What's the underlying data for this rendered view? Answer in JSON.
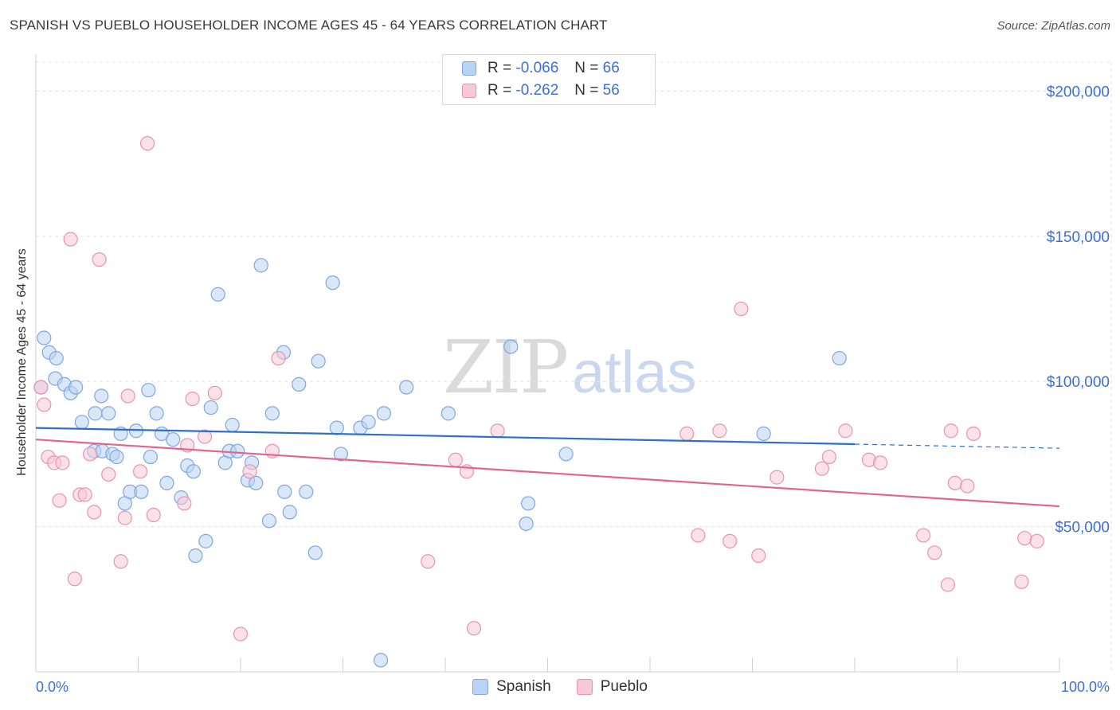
{
  "header": {
    "title": "SPANISH VS PUEBLO HOUSEHOLDER INCOME AGES 45 - 64 YEARS CORRELATION CHART",
    "source": "Source: ZipAtlas.com"
  },
  "watermark": {
    "zip": "ZIP",
    "atlas": "atlas"
  },
  "legend": {
    "rows": [
      {
        "r_label": "R =",
        "r_value": "-0.066",
        "n_label": "N =",
        "n_value": "66"
      },
      {
        "r_label": "R =",
        "r_value": "-0.262",
        "n_label": "N =",
        "n_value": "56"
      }
    ]
  },
  "colors": {
    "spanish_fill": "#b9d3f4",
    "spanish_stroke": "#7ea7de",
    "spanish_line": "#2d6fca",
    "pueblo_fill": "#f8c8d6",
    "pueblo_stroke": "#e893b0",
    "pueblo_line": "#e0668f",
    "value_text": "#3d6fd6",
    "grid": "#e2e2e2"
  },
  "chart_data": {
    "type": "scatter",
    "xlabel": "",
    "ylabel": "Householder Income Ages 45 - 64 years",
    "xlim": [
      0,
      100
    ],
    "ylim": [
      0,
      210000
    ],
    "x_tick_labels": [
      "0.0%",
      "100.0%"
    ],
    "y_ticks": [
      50000,
      100000,
      150000,
      200000
    ],
    "y_tick_labels": [
      "$50,000",
      "$100,000",
      "$150,000",
      "$200,000"
    ],
    "grid": true,
    "legend_position": "bottom-center",
    "series": [
      {
        "name": "Spanish",
        "r": -0.066,
        "n": 66,
        "trend": {
          "x0": 0,
          "y0": 84000,
          "x1": 100,
          "y1": 77000,
          "solid_until": 80
        },
        "points": [
          [
            0.5,
            98000
          ],
          [
            0.8,
            115000
          ],
          [
            1.3,
            110000
          ],
          [
            2.0,
            108000
          ],
          [
            1.9,
            101000
          ],
          [
            2.8,
            99000
          ],
          [
            3.4,
            96000
          ],
          [
            3.9,
            98000
          ],
          [
            4.5,
            86000
          ],
          [
            5.7,
            76000
          ],
          [
            5.8,
            89000
          ],
          [
            6.4,
            95000
          ],
          [
            6.5,
            76000
          ],
          [
            7.1,
            89000
          ],
          [
            7.5,
            75000
          ],
          [
            7.9,
            74000
          ],
          [
            8.3,
            82000
          ],
          [
            8.7,
            58000
          ],
          [
            9.2,
            62000
          ],
          [
            9.8,
            83000
          ],
          [
            10.3,
            62000
          ],
          [
            11.0,
            97000
          ],
          [
            11.2,
            74000
          ],
          [
            11.8,
            89000
          ],
          [
            12.3,
            82000
          ],
          [
            12.8,
            65000
          ],
          [
            13.4,
            80000
          ],
          [
            14.2,
            60000
          ],
          [
            14.8,
            71000
          ],
          [
            15.4,
            69000
          ],
          [
            15.6,
            40000
          ],
          [
            16.6,
            45000
          ],
          [
            17.1,
            91000
          ],
          [
            17.8,
            130000
          ],
          [
            18.5,
            72000
          ],
          [
            18.9,
            76000
          ],
          [
            19.2,
            85000
          ],
          [
            19.7,
            76000
          ],
          [
            20.7,
            66000
          ],
          [
            21.1,
            72000
          ],
          [
            21.5,
            65000
          ],
          [
            22.0,
            140000
          ],
          [
            22.8,
            52000
          ],
          [
            23.1,
            89000
          ],
          [
            24.2,
            110000
          ],
          [
            24.3,
            62000
          ],
          [
            24.8,
            55000
          ],
          [
            25.7,
            99000
          ],
          [
            26.4,
            62000
          ],
          [
            27.3,
            41000
          ],
          [
            27.6,
            107000
          ],
          [
            29.0,
            134000
          ],
          [
            29.4,
            84000
          ],
          [
            29.8,
            75000
          ],
          [
            31.7,
            84000
          ],
          [
            32.5,
            86000
          ],
          [
            33.7,
            4000
          ],
          [
            34.0,
            89000
          ],
          [
            36.2,
            98000
          ],
          [
            40.3,
            89000
          ],
          [
            46.4,
            112000
          ],
          [
            47.9,
            51000
          ],
          [
            48.1,
            58000
          ],
          [
            51.8,
            75000
          ],
          [
            71.1,
            82000
          ],
          [
            78.5,
            108000
          ]
        ]
      },
      {
        "name": "Pueblo",
        "r": -0.262,
        "n": 56,
        "trend": {
          "x0": 0,
          "y0": 80000,
          "x1": 100,
          "y1": 57000
        },
        "points": [
          [
            0.5,
            98000
          ],
          [
            0.8,
            92000
          ],
          [
            1.2,
            74000
          ],
          [
            1.8,
            72000
          ],
          [
            2.3,
            59000
          ],
          [
            2.6,
            72000
          ],
          [
            3.4,
            149000
          ],
          [
            3.8,
            32000
          ],
          [
            4.3,
            61000
          ],
          [
            4.8,
            61000
          ],
          [
            5.3,
            75000
          ],
          [
            5.7,
            55000
          ],
          [
            6.2,
            142000
          ],
          [
            7.1,
            68000
          ],
          [
            8.3,
            38000
          ],
          [
            8.7,
            53000
          ],
          [
            9.0,
            95000
          ],
          [
            10.2,
            69000
          ],
          [
            10.9,
            182000
          ],
          [
            11.5,
            54000
          ],
          [
            14.5,
            58000
          ],
          [
            14.8,
            78000
          ],
          [
            15.3,
            94000
          ],
          [
            16.5,
            81000
          ],
          [
            17.5,
            96000
          ],
          [
            20.0,
            13000
          ],
          [
            20.9,
            69000
          ],
          [
            23.1,
            76000
          ],
          [
            23.7,
            108000
          ],
          [
            38.3,
            38000
          ],
          [
            41.0,
            73000
          ],
          [
            42.1,
            69000
          ],
          [
            42.8,
            15000
          ],
          [
            45.1,
            83000
          ],
          [
            63.6,
            82000
          ],
          [
            64.7,
            47000
          ],
          [
            66.8,
            83000
          ],
          [
            67.8,
            45000
          ],
          [
            68.9,
            125000
          ],
          [
            70.6,
            40000
          ],
          [
            72.4,
            67000
          ],
          [
            76.8,
            70000
          ],
          [
            77.5,
            74000
          ],
          [
            79.1,
            83000
          ],
          [
            81.4,
            73000
          ],
          [
            82.5,
            72000
          ],
          [
            86.7,
            47000
          ],
          [
            87.8,
            41000
          ],
          [
            89.1,
            30000
          ],
          [
            89.4,
            83000
          ],
          [
            89.8,
            65000
          ],
          [
            91.0,
            64000
          ],
          [
            91.6,
            82000
          ],
          [
            96.3,
            31000
          ],
          [
            96.6,
            46000
          ],
          [
            97.8,
            45000
          ]
        ]
      }
    ]
  }
}
